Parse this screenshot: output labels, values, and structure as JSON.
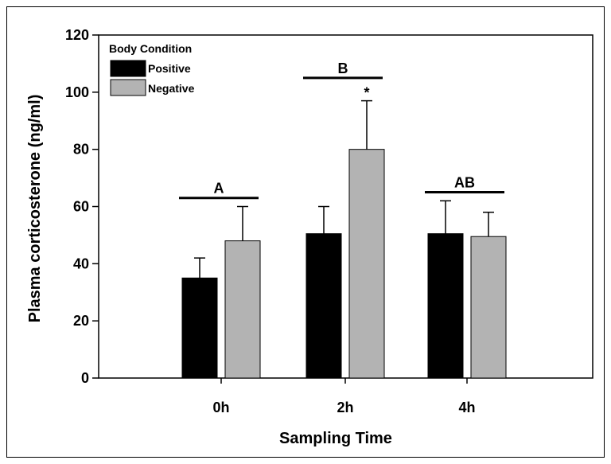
{
  "chart_data": {
    "type": "bar",
    "title": "",
    "xlabel": "Sampling Time",
    "ylabel": "Plasma corticosterone (ng/ml)",
    "ylim": [
      0,
      120
    ],
    "yticks": [
      0,
      20,
      40,
      60,
      80,
      100,
      120
    ],
    "categories": [
      "0h",
      "2h",
      "4h"
    ],
    "legend": {
      "title": "Body Condition",
      "placement": "top-left"
    },
    "series": [
      {
        "name": "Positive",
        "color": "#000000",
        "values": [
          35,
          50.5,
          50.5
        ],
        "errors": [
          7,
          9.5,
          11.5
        ]
      },
      {
        "name": "Negative",
        "color": "#b3b3b3",
        "values": [
          48,
          80,
          49.5
        ],
        "errors": [
          12,
          17,
          8.5
        ]
      }
    ],
    "group_letters": [
      "A",
      "B",
      "AB"
    ],
    "group_letter_line_y": [
      63,
      105,
      65
    ],
    "significance": [
      {
        "category": "2h",
        "series": "Negative",
        "label": "*"
      }
    ]
  }
}
